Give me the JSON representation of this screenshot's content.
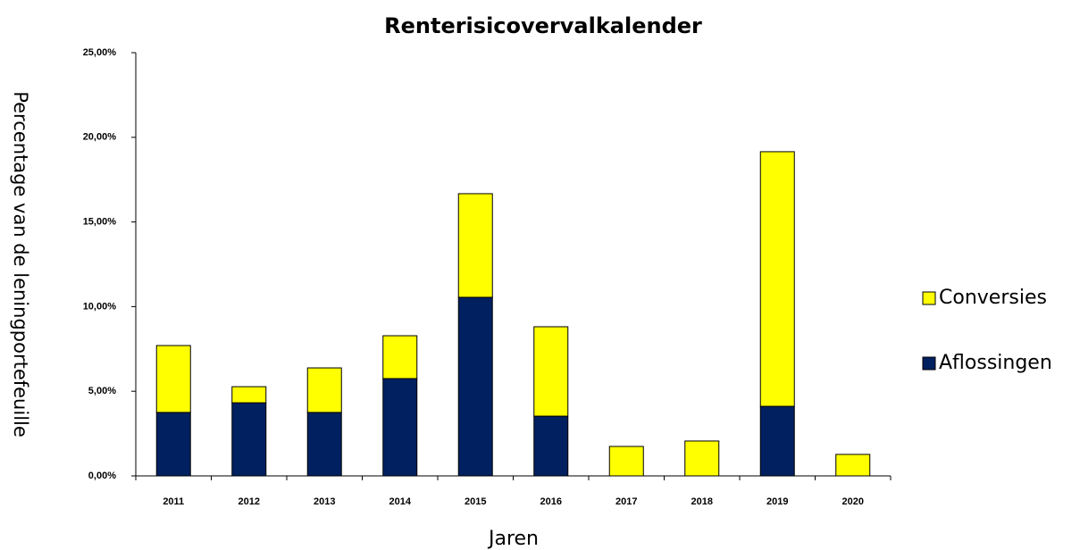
{
  "chart_data": {
    "type": "stacked_bar",
    "title": "Renterisicovervalkalender",
    "xlabel": "Jaren",
    "ylabel": "Percentage van de leningportefeuille",
    "categories": [
      "2011",
      "2012",
      "2013",
      "2014",
      "2015",
      "2016",
      "2017",
      "2018",
      "2019",
      "2020"
    ],
    "series": [
      {
        "name": "Aflossingen",
        "color": "#002060",
        "values": [
          3.75,
          4.32,
          3.75,
          5.75,
          10.55,
          3.53,
          0,
          0,
          4.11,
          0
        ]
      },
      {
        "name": "Conversies",
        "color": "#ffff00",
        "values": [
          3.95,
          0.95,
          2.63,
          2.53,
          6.12,
          5.28,
          1.74,
          2.06,
          15.04,
          1.27
        ]
      }
    ],
    "ylim": [
      0,
      25
    ],
    "yticks": [
      {
        "value": 0,
        "label": "0,00%"
      },
      {
        "value": 5,
        "label": "5,00%"
      },
      {
        "value": 10,
        "label": "10,00%"
      },
      {
        "value": 15,
        "label": "15,00%"
      },
      {
        "value": 20,
        "label": "20,00%"
      },
      {
        "value": 25,
        "label": "25,00%"
      }
    ],
    "grid": false,
    "legend": "right"
  }
}
